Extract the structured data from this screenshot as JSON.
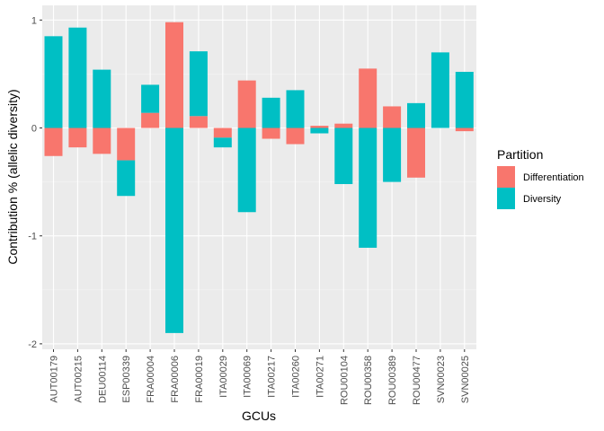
{
  "chart_data": {
    "type": "bar",
    "stacking": "diverging",
    "xlabel": "GCUs",
    "ylabel": "Contribution % (allelic diversity)",
    "ylim": [
      -2,
      1
    ],
    "yticks": [
      1,
      0,
      -1,
      -2
    ],
    "grid": true,
    "legend": {
      "title": "Partition",
      "position": "right"
    },
    "categories": [
      "AUT00179",
      "AUT00215",
      "DEU00114",
      "ESP00339",
      "FRA00004",
      "FRA00006",
      "FRA00019",
      "ITA00029",
      "ITA00069",
      "ITA00217",
      "ITA00260",
      "ITA00271",
      "ROU00104",
      "ROU00358",
      "ROU00389",
      "ROU00477",
      "SVN00023",
      "SVN00025"
    ],
    "series": [
      {
        "name": "Differentiation",
        "color": "#F8766D",
        "values": [
          -0.26,
          -0.18,
          -0.24,
          -0.3,
          0.14,
          0.98,
          0.11,
          -0.09,
          0.44,
          -0.1,
          -0.15,
          0.02,
          0.04,
          0.55,
          0.2,
          -0.46,
          0.0,
          -0.03
        ]
      },
      {
        "name": "Diversity",
        "color": "#00BFC4",
        "values": [
          0.85,
          0.93,
          0.54,
          -0.33,
          0.26,
          -1.9,
          0.6,
          -0.09,
          -0.78,
          0.28,
          0.35,
          -0.05,
          -0.52,
          -1.11,
          -0.5,
          0.23,
          0.7,
          0.52
        ]
      }
    ]
  }
}
